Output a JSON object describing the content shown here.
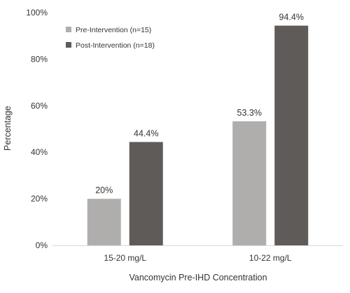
{
  "chart_data": {
    "type": "bar",
    "categories": [
      "15-20 mg/L",
      "10-22 mg/L"
    ],
    "series": [
      {
        "name": "Pre-Intervention (n=15)",
        "values": [
          20.0,
          53.3
        ],
        "labels": [
          "20%",
          "53.3%"
        ],
        "color": "#b0aeac"
      },
      {
        "name": "Post-Intervention (n=18)",
        "values": [
          44.4,
          94.4
        ],
        "labels": [
          "44.4%",
          "94.4%"
        ],
        "color": "#5e5b58"
      }
    ],
    "title": "",
    "xlabel": "Vancomycin Pre-IHD Concentration",
    "ylabel": "Percentage",
    "ylim": [
      0,
      100
    ],
    "yticks": [
      0,
      20,
      40,
      60,
      80,
      100
    ],
    "ytick_labels": [
      "0%",
      "20%",
      "40%",
      "60%",
      "80%",
      "100%"
    ],
    "grid": false,
    "legend_position": "top-left",
    "axis_color": "#d9d9d9"
  }
}
